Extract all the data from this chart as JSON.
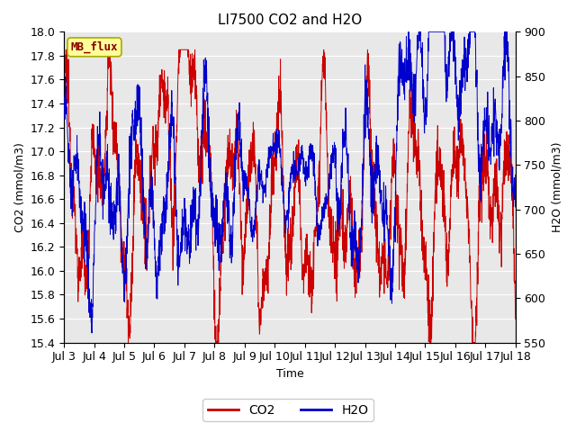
{
  "title": "LI7500 CO2 and H2O",
  "xlabel": "Time",
  "ylabel_left": "CO2 (mmol/m3)",
  "ylabel_right": "H2O (mmol/m3)",
  "ylim_left": [
    15.4,
    18.0
  ],
  "ylim_right": [
    550,
    900
  ],
  "yticks_left": [
    15.4,
    15.6,
    15.8,
    16.0,
    16.2,
    16.4,
    16.6,
    16.8,
    17.0,
    17.2,
    17.4,
    17.6,
    17.8,
    18.0
  ],
  "yticks_right": [
    550,
    600,
    650,
    700,
    750,
    800,
    850,
    900
  ],
  "xtick_labels": [
    "Jul 3",
    "Jul 4",
    "Jul 5",
    "Jul 6",
    "Jul 7",
    "Jul 8",
    "Jul 9",
    "Jul 10",
    "Jul 11",
    "Jul 12",
    "Jul 13",
    "Jul 14",
    "Jul 15",
    "Jul 16",
    "Jul 17",
    "Jul 18"
  ],
  "co2_color": "#cc0000",
  "h2o_color": "#0000cc",
  "legend_label_co2": "CO2",
  "legend_label_h2o": "H2O",
  "annotation_text": "MB_flux",
  "annotation_bg": "#ffff99",
  "annotation_border": "#aaaa00",
  "annotation_text_color": "#880000",
  "fig_bg_color": "#ffffff",
  "plot_bg_color": "#e8e8e8",
  "grid_color": "#ffffff",
  "title_fontsize": 11,
  "axis_fontsize": 9,
  "tick_fontsize": 9,
  "legend_fontsize": 10
}
